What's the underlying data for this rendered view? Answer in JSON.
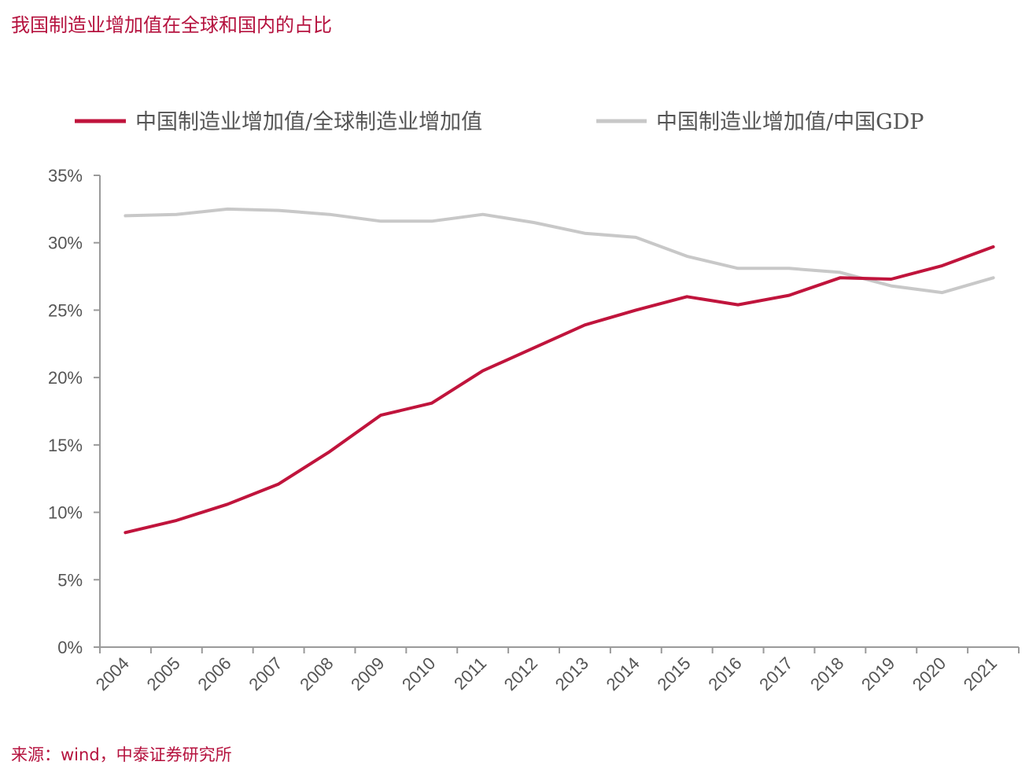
{
  "title": "我国制造业增加值在全球和国内的占比",
  "source": "来源：wind，中泰证券研究所",
  "chart_data": {
    "type": "line",
    "categories": [
      "2004",
      "2005",
      "2006",
      "2007",
      "2008",
      "2009",
      "2010",
      "2011",
      "2012",
      "2013",
      "2014",
      "2015",
      "2016",
      "2017",
      "2018",
      "2019",
      "2020",
      "2021"
    ],
    "series": [
      {
        "name": "中国制造业增加值/全球制造业增加值",
        "color": "#c0143c",
        "values": [
          8.5,
          9.4,
          10.6,
          12.1,
          14.5,
          17.2,
          18.1,
          20.5,
          22.2,
          23.9,
          25.0,
          26.0,
          25.4,
          26.1,
          27.4,
          27.3,
          28.3,
          29.7
        ]
      },
      {
        "name": "中国制造业增加值/中国GDP",
        "color": "#c8c8c8",
        "values": [
          32.0,
          32.1,
          32.5,
          32.4,
          32.1,
          31.6,
          31.6,
          32.1,
          31.5,
          30.7,
          30.4,
          29.0,
          28.1,
          28.1,
          27.8,
          26.8,
          26.3,
          27.4
        ]
      }
    ],
    "y_ticks": [
      "0%",
      "5%",
      "10%",
      "15%",
      "20%",
      "25%",
      "30%",
      "35%"
    ],
    "ylim": [
      0,
      35
    ],
    "legend_position": "top",
    "grid": false
  }
}
